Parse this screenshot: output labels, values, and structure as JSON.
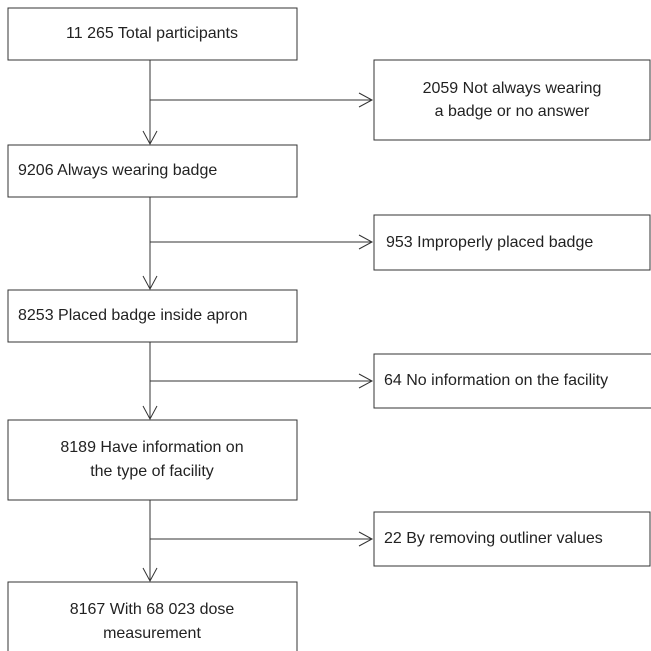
{
  "nodes": [
    {
      "lines": [
        "11 265 Total participants"
      ]
    },
    {
      "lines": [
        "2059 Not always wearing",
        "a badge or no answer"
      ]
    },
    {
      "lines": [
        "9206 Always wearing badge"
      ]
    },
    {
      "lines": [
        "953 Improperly placed badge"
      ]
    },
    {
      "lines": [
        "8253 Placed badge inside apron"
      ]
    },
    {
      "lines": [
        "64 No information on the facility"
      ]
    },
    {
      "lines": [
        "8189 Have information on",
        "the type of facility"
      ]
    },
    {
      "lines": [
        "22 By removing outliner values"
      ]
    },
    {
      "lines": [
        "8167 With 68 023 dose",
        "measurement"
      ]
    }
  ]
}
